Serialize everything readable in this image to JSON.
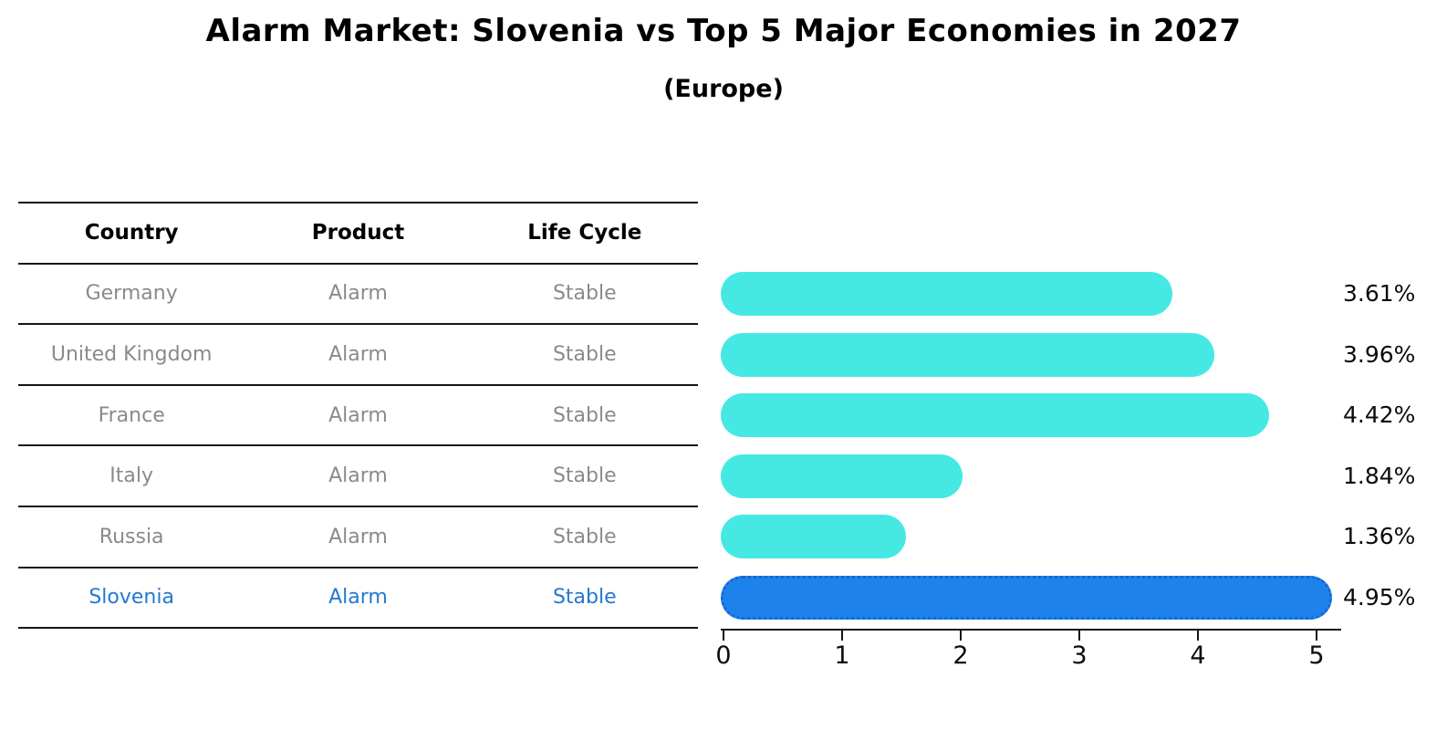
{
  "title": "Alarm Market: Slovenia vs Top 5 Major Economies in 2027",
  "subtitle": "(Europe)",
  "table": {
    "headers": {
      "country": "Country",
      "product": "Product",
      "life_cycle": "Life Cycle"
    },
    "rows": [
      {
        "country": "Germany",
        "product": "Alarm",
        "life_cycle": "Stable",
        "highlighted": false
      },
      {
        "country": "United Kingdom",
        "product": "Alarm",
        "life_cycle": "Stable",
        "highlighted": false
      },
      {
        "country": "France",
        "product": "Alarm",
        "life_cycle": "Stable",
        "highlighted": false
      },
      {
        "country": "Italy",
        "product": "Alarm",
        "life_cycle": "Stable",
        "highlighted": false
      },
      {
        "country": "Russia",
        "product": "Alarm",
        "life_cycle": "Stable",
        "highlighted": false
      },
      {
        "country": "Slovenia",
        "product": "Alarm",
        "life_cycle": "Stable",
        "highlighted": true
      }
    ]
  },
  "chart_data": {
    "type": "bar",
    "orientation": "horizontal",
    "title": "Alarm Market: Slovenia vs Top 5 Major Economies in 2027",
    "subtitle": "(Europe)",
    "categories": [
      "Germany",
      "United Kingdom",
      "France",
      "Italy",
      "Russia",
      "Slovenia"
    ],
    "values": [
      3.61,
      3.96,
      4.42,
      1.84,
      1.36,
      4.95
    ],
    "value_labels": [
      "3.61%",
      "3.96%",
      "4.42%",
      "1.84%",
      "1.36%",
      "4.95%"
    ],
    "x_ticks": [
      0,
      1,
      2,
      3,
      4,
      5
    ],
    "xlim": [
      0,
      5.2
    ],
    "grid": false,
    "legend": false,
    "highlight_index": 5,
    "bar_color": "#46e8e4",
    "highlight_color": "#1e82ec",
    "highlight_border_color": "#1668cf",
    "muted_text_color": "#8a8a8a",
    "highlight_text_color": "#2478d0"
  }
}
